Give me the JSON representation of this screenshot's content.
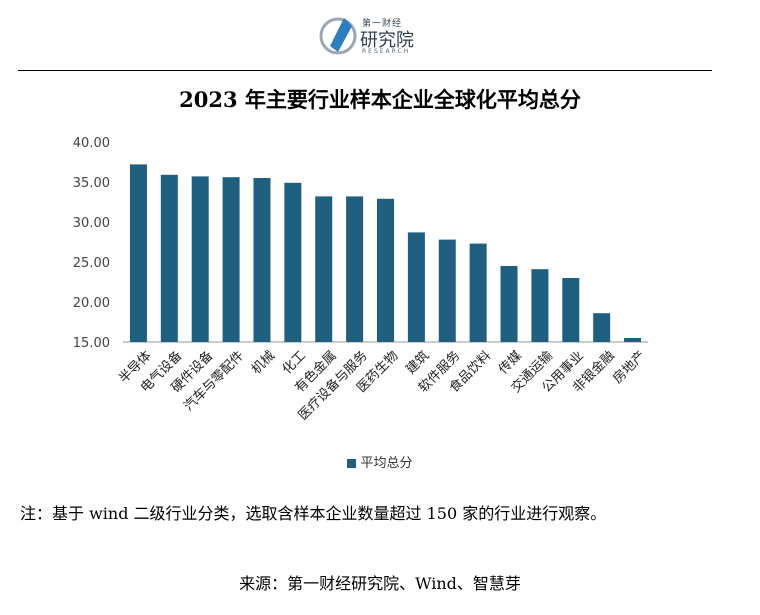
{
  "brand": {
    "top": "第一财经",
    "main": "研究院",
    "sub": "RESEARCH"
  },
  "title": "2023 年主要行业样本企业全球化平均总分",
  "legend_label": "平均总分",
  "note": "注：基于 wind 二级行业分类，选取含样本企业数量超过 150 家的行业进行观察。",
  "source": "来源：第一财经研究院、Wind、智慧芽",
  "colors": {
    "bar": "#1f5f7f",
    "axis": "#999999"
  },
  "chart_data": {
    "type": "bar",
    "categories": [
      "半导体",
      "电气设备",
      "硬件设备",
      "汽车与零配件",
      "机械",
      "化工",
      "有色金属",
      "医疗设备与服务",
      "医药生物",
      "建筑",
      "软件服务",
      "食品饮料",
      "传媒",
      "交通运输",
      "公用事业",
      "非银金融",
      "房地产"
    ],
    "series": [
      {
        "name": "平均总分",
        "values": [
          37.2,
          35.9,
          35.7,
          35.6,
          35.5,
          34.9,
          33.2,
          33.2,
          32.9,
          28.7,
          27.8,
          27.3,
          24.5,
          24.1,
          23.0,
          18.6,
          15.5
        ]
      }
    ],
    "yticks": [
      "15.00",
      "20.00",
      "25.00",
      "30.00",
      "35.00",
      "40.00"
    ],
    "ylim": [
      15,
      40
    ],
    "legend": "bottom",
    "grid": false
  }
}
